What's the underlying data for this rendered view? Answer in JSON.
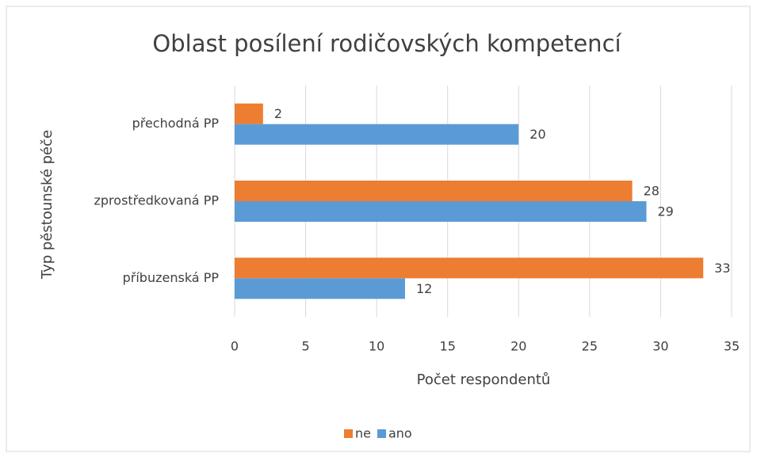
{
  "chart_data": {
    "type": "barh",
    "title": "Oblast posílení rodičovských kompetencí",
    "xlabel": "Počet respondentů",
    "ylabel": "Typ pěstounské péče",
    "categories": [
      "přechodná PP",
      "zprostředkovaná PP",
      "příbuzenská PP"
    ],
    "series": [
      {
        "name": "ne",
        "color": "#ed7d31",
        "values": [
          2,
          28,
          33
        ]
      },
      {
        "name": "ano",
        "color": "#5b9bd5",
        "values": [
          20,
          29,
          12
        ]
      }
    ],
    "xlim": [
      0,
      35
    ],
    "xticks": [
      0,
      5,
      10,
      15,
      20,
      25,
      30,
      35
    ],
    "grid": true,
    "legend": "bottom"
  }
}
